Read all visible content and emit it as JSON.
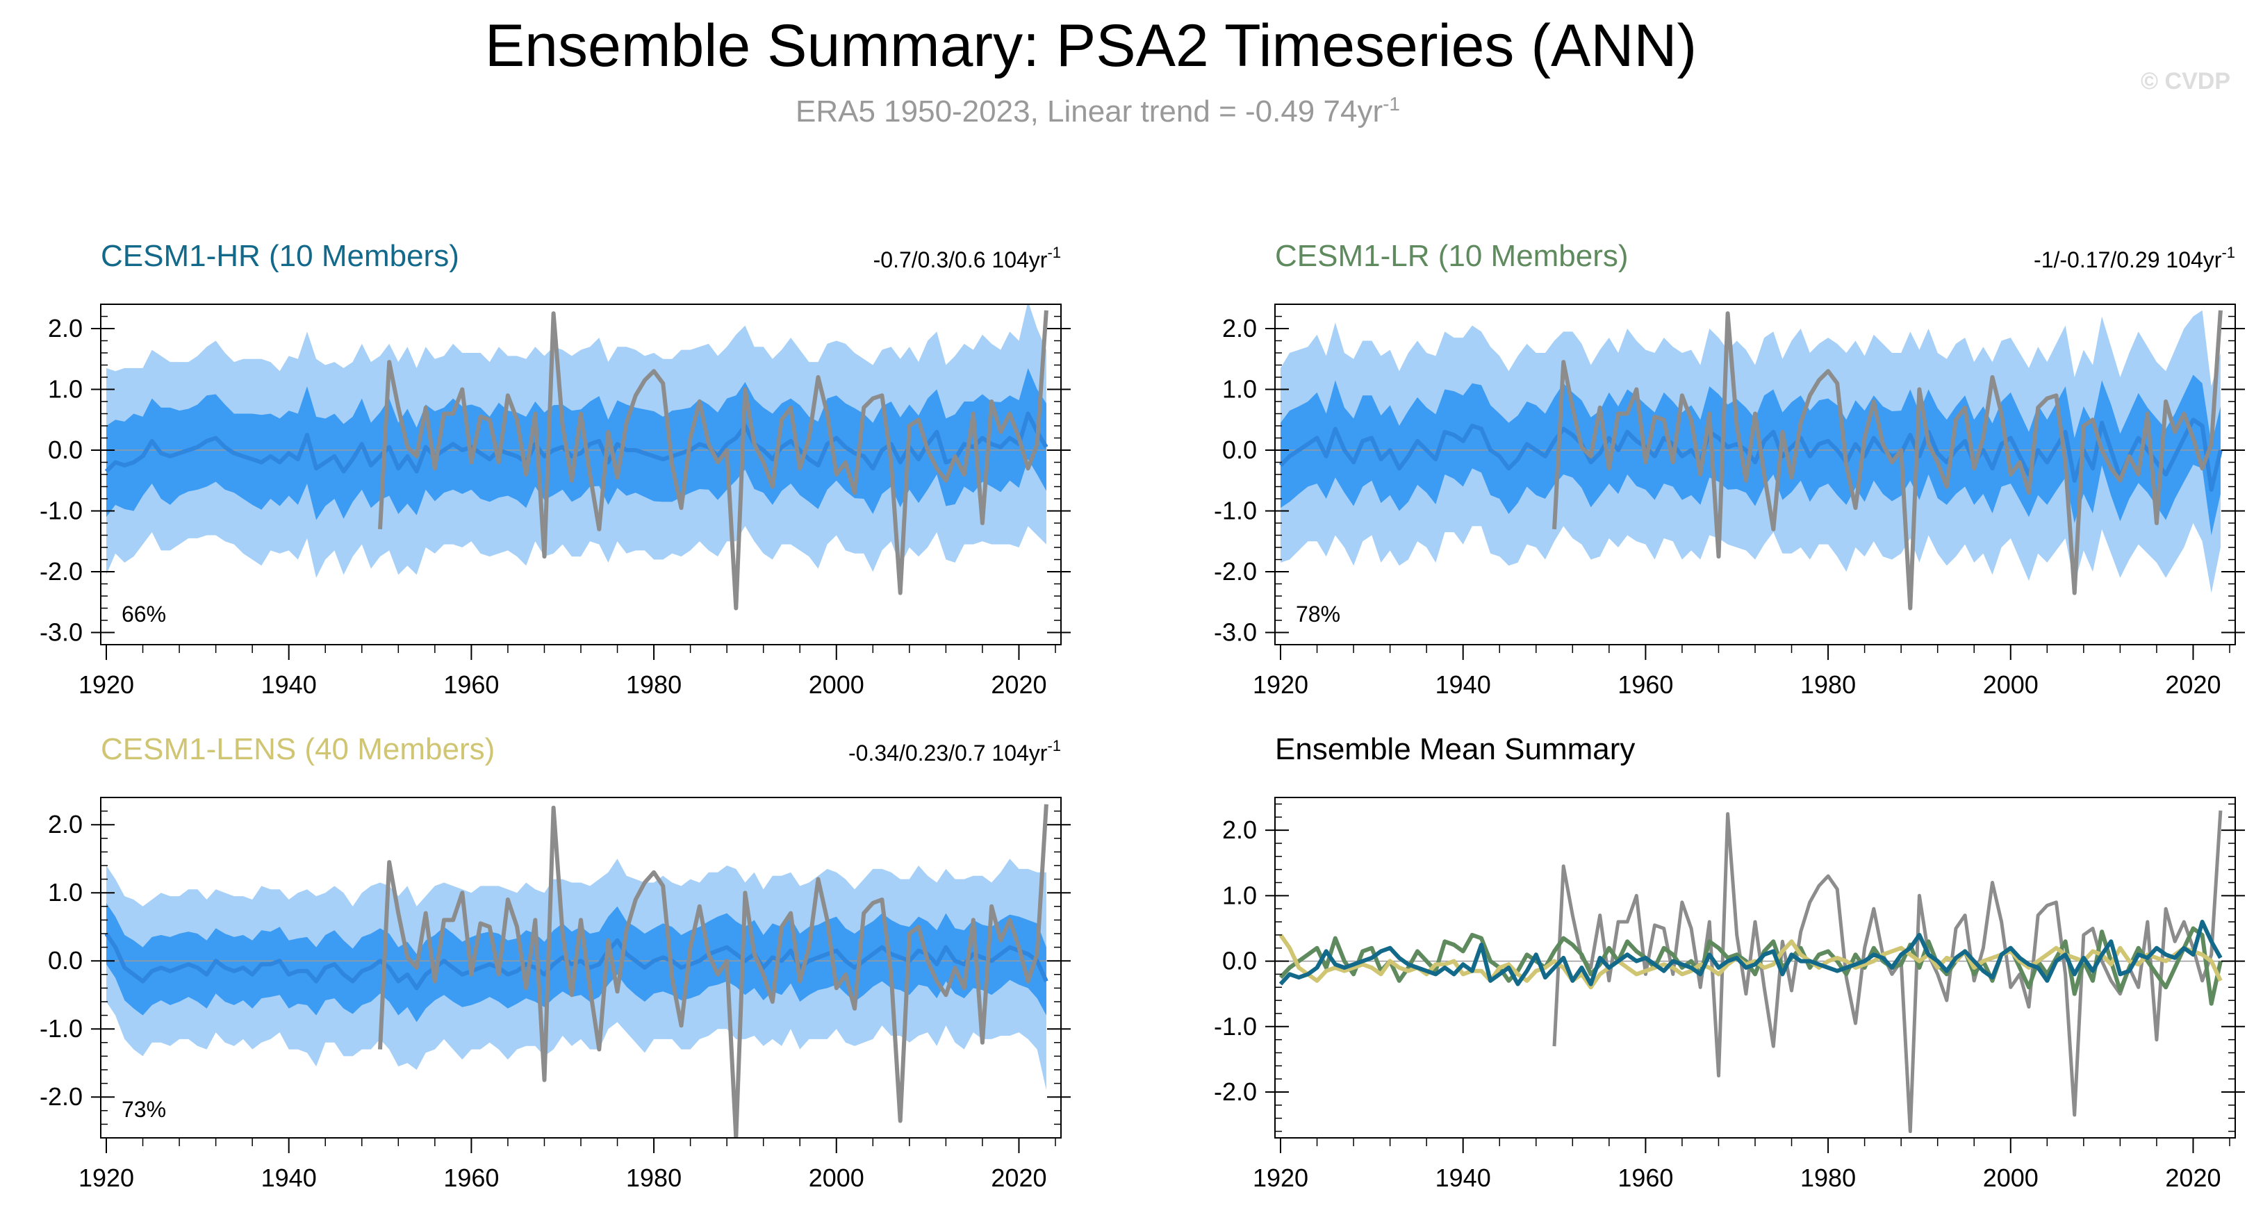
{
  "title": "Ensemble Summary: PSA2 Timeseries (ANN)",
  "subtitle": "ERA5 1950-2023, Linear trend = -0.49 74yr",
  "subtitle_sup": "-1",
  "watermark": "© CVDP",
  "colors": {
    "outer_band": "#a6d0f7",
    "inner_band": "#3c9bf2",
    "ensemble_mean": "#2f86de",
    "obs": "#8c8c8c",
    "hr": "#13698a",
    "lr": "#5e8a5e",
    "lens": "#cfc572",
    "zero_line": "#9a9a9a"
  },
  "chart_data": [
    {
      "id": "hr",
      "type": "area",
      "title": "CESM1-HR (10 Members)",
      "title_color": "#13698a",
      "trend_label": "-0.7/0.3/0.6 104yr",
      "trend_sup": "-1",
      "percent_label": "66%",
      "x_start": 1920,
      "x_end": 2023,
      "xlim": [
        1920,
        2024
      ],
      "ylim": [
        -3.2,
        2.4
      ],
      "xticks": [
        "1920",
        "1940",
        "1960",
        "1980",
        "2000",
        "2020"
      ],
      "yticks": [
        "2.0",
        "1.0",
        "0.0",
        "-1.0",
        "-2.0",
        "-3.0"
      ],
      "ytick_values": [
        2,
        1,
        0,
        -1,
        -2,
        -3
      ],
      "ens_mean": [
        -0.35,
        -0.2,
        -0.25,
        -0.2,
        -0.1,
        0.15,
        -0.05,
        -0.1,
        -0.05,
        0.0,
        0.05,
        0.15,
        0.2,
        0.05,
        -0.05,
        -0.1,
        -0.15,
        -0.2,
        -0.1,
        -0.2,
        -0.05,
        -0.15,
        0.25,
        -0.3,
        -0.2,
        -0.1,
        -0.35,
        -0.15,
        0.1,
        -0.25,
        -0.1,
        0.05,
        -0.3,
        -0.1,
        -0.35,
        0.05,
        -0.1,
        0.0,
        0.1,
        0.0,
        0.05,
        -0.05,
        -0.15,
        0.0,
        -0.05,
        -0.1,
        -0.2,
        0.1,
        -0.1,
        0.0,
        0.05,
        -0.1,
        -0.05,
        0.1,
        0.15,
        -0.2,
        0.1,
        0.0,
        0.0,
        -0.05,
        -0.1,
        -0.15,
        -0.1,
        -0.05,
        0.0,
        0.1,
        0.05,
        -0.1,
        0.1,
        0.2,
        0.4,
        0.1,
        0.0,
        -0.15,
        0.05,
        0.15,
        0.0,
        -0.15,
        -0.25,
        0.1,
        0.2,
        0.05,
        -0.05,
        -0.1,
        -0.3,
        0.0,
        0.1,
        -0.2,
        0.05,
        -0.15,
        0.1,
        0.3,
        -0.2,
        -0.15,
        0.1,
        0.05,
        0.2,
        0.1,
        0.05,
        0.2,
        0.1,
        0.6,
        0.3,
        0.05
      ],
      "ens_spread": [
        0.75,
        0.7,
        0.72,
        0.8,
        0.65,
        0.7,
        0.75,
        0.8,
        0.7,
        0.68,
        0.7,
        0.75,
        0.72,
        0.7,
        0.65,
        0.7,
        0.75,
        0.78,
        0.7,
        0.72,
        0.7,
        0.75,
        0.8,
        0.85,
        0.72,
        0.7,
        0.78,
        0.7,
        0.75,
        0.7,
        0.72,
        0.8,
        0.75,
        0.78,
        0.72,
        0.7,
        0.74,
        0.7,
        0.75,
        0.72,
        0.7,
        0.75,
        0.7,
        0.78,
        0.7,
        0.72,
        0.75,
        0.7,
        0.72,
        0.74,
        0.7,
        0.75,
        0.72,
        0.7,
        0.74,
        0.7,
        0.72,
        0.75,
        0.7,
        0.72,
        0.74,
        0.7,
        0.75,
        0.72,
        0.7,
        0.74,
        0.7,
        0.72,
        0.75,
        0.7,
        0.72,
        0.74,
        0.7,
        0.75,
        0.72,
        0.7,
        0.74,
        0.7,
        0.72,
        0.75,
        0.7,
        0.72,
        0.74,
        0.7,
        0.75,
        0.72,
        0.7,
        0.74,
        0.7,
        0.72,
        0.75,
        0.7,
        0.72,
        0.74,
        0.7,
        0.75,
        0.72,
        0.7,
        0.74,
        0.7,
        0.72,
        0.75,
        0.7,
        0.72
      ],
      "outer_spread": [
        1.7,
        1.5,
        1.6,
        1.55,
        1.45,
        1.5,
        1.6,
        1.55,
        1.5,
        1.45,
        1.5,
        1.55,
        1.6,
        1.55,
        1.5,
        1.6,
        1.65,
        1.7,
        1.55,
        1.5,
        1.6,
        1.65,
        1.7,
        1.8,
        1.6,
        1.55,
        1.7,
        1.6,
        1.65,
        1.7,
        1.65,
        1.7,
        1.75,
        1.8,
        1.7,
        1.65,
        1.6,
        1.55,
        1.65,
        1.6,
        1.55,
        1.65,
        1.6,
        1.7,
        1.6,
        1.65,
        1.7,
        1.6,
        1.65,
        1.7,
        1.6,
        1.65,
        1.7,
        1.6,
        1.7,
        1.65,
        1.6,
        1.7,
        1.65,
        1.6,
        1.7,
        1.65,
        1.6,
        1.7,
        1.65,
        1.6,
        1.7,
        1.65,
        1.6,
        1.7,
        1.65,
        1.6,
        1.7,
        1.65,
        1.6,
        1.7,
        1.65,
        1.6,
        1.7,
        1.65,
        1.6,
        1.7,
        1.65,
        1.6,
        1.7,
        1.65,
        1.6,
        1.7,
        1.65,
        1.6,
        1.7,
        1.65,
        1.6,
        1.7,
        1.65,
        1.6,
        1.7,
        1.65,
        1.6,
        1.75,
        1.7,
        1.85,
        1.7,
        1.6
      ]
    },
    {
      "id": "lr",
      "type": "area",
      "title": "CESM1-LR (10 Members)",
      "title_color": "#5e8a5e",
      "trend_label": "-1/-0.17/0.29 104yr",
      "trend_sup": "-1",
      "percent_label": "78%",
      "x_start": 1920,
      "x_end": 2023,
      "xlim": [
        1920,
        2024
      ],
      "ylim": [
        -3.2,
        2.4
      ],
      "xticks": [
        "1920",
        "1940",
        "1960",
        "1980",
        "2000",
        "2020"
      ],
      "yticks": [
        "2.0",
        "1.0",
        "0.0",
        "-1.0",
        "-2.0",
        "-3.0"
      ],
      "ytick_values": [
        2,
        1,
        0,
        -1,
        -2,
        -3
      ],
      "ens_mean": [
        -0.25,
        -0.1,
        0.0,
        0.1,
        0.2,
        -0.1,
        0.35,
        0.0,
        -0.2,
        0.15,
        0.2,
        -0.15,
        0.0,
        -0.3,
        -0.1,
        0.15,
        0.0,
        -0.15,
        0.3,
        0.25,
        0.15,
        0.4,
        0.35,
        0.0,
        -0.1,
        -0.3,
        -0.15,
        0.1,
        0.0,
        -0.1,
        0.15,
        0.35,
        0.25,
        0.1,
        -0.2,
        -0.05,
        0.2,
        0.0,
        0.3,
        0.15,
        0.05,
        -0.1,
        0.2,
        0.1,
        -0.1,
        0.0,
        -0.2,
        0.3,
        0.2,
        0.05,
        0.1,
        0.0,
        -0.2,
        0.15,
        0.3,
        -0.1,
        0.05,
        0.2,
        -0.1,
        0.1,
        0.15,
        0.0,
        -0.2,
        0.1,
        -0.1,
        0.2,
        0.0,
        -0.1,
        -0.05,
        0.25,
        -0.1,
        0.3,
        -0.05,
        -0.2,
        0.0,
        0.15,
        -0.2,
        0.0,
        -0.3,
        0.1,
        0.2,
        -0.1,
        -0.4,
        0.0,
        -0.2,
        0.05,
        0.3,
        -0.5,
        0.0,
        -0.3,
        0.45,
        0.0,
        -0.45,
        -0.1,
        0.2,
        0.0,
        -0.2,
        -0.4,
        -0.1,
        0.2,
        0.5,
        0.4,
        -0.65,
        0.0
      ],
      "ens_spread": [
        0.7,
        0.75,
        0.72,
        0.7,
        0.75,
        0.7,
        0.8,
        0.7,
        0.72,
        0.75,
        0.7,
        0.72,
        0.74,
        0.7,
        0.75,
        0.72,
        0.7,
        0.74,
        0.7,
        0.72,
        0.75,
        0.7,
        0.72,
        0.74,
        0.7,
        0.75,
        0.72,
        0.7,
        0.74,
        0.7,
        0.72,
        0.75,
        0.7,
        0.72,
        0.74,
        0.7,
        0.75,
        0.72,
        0.7,
        0.74,
        0.7,
        0.72,
        0.75,
        0.7,
        0.72,
        0.74,
        0.7,
        0.75,
        0.72,
        0.7,
        0.74,
        0.7,
        0.72,
        0.75,
        0.7,
        0.72,
        0.74,
        0.7,
        0.75,
        0.72,
        0.7,
        0.74,
        0.7,
        0.72,
        0.75,
        0.7,
        0.72,
        0.74,
        0.7,
        0.75,
        0.72,
        0.7,
        0.74,
        0.7,
        0.72,
        0.75,
        0.7,
        0.72,
        0.74,
        0.7,
        0.75,
        0.72,
        0.7,
        0.74,
        0.7,
        0.72,
        0.75,
        0.7,
        0.72,
        0.74,
        0.7,
        0.75,
        0.72,
        0.7,
        0.74,
        0.7,
        0.72,
        0.75,
        0.7,
        0.72,
        0.74,
        0.7,
        0.75,
        0.72
      ],
      "outer_spread": [
        1.6,
        1.7,
        1.65,
        1.6,
        1.7,
        1.65,
        1.75,
        1.6,
        1.7,
        1.65,
        1.6,
        1.7,
        1.65,
        1.6,
        1.7,
        1.65,
        1.6,
        1.7,
        1.65,
        1.6,
        1.7,
        1.65,
        1.6,
        1.7,
        1.65,
        1.6,
        1.7,
        1.65,
        1.6,
        1.7,
        1.65,
        1.6,
        1.7,
        1.65,
        1.6,
        1.7,
        1.65,
        1.6,
        1.7,
        1.65,
        1.6,
        1.7,
        1.65,
        1.6,
        1.7,
        1.65,
        1.6,
        1.7,
        1.65,
        1.6,
        1.7,
        1.65,
        1.6,
        1.7,
        1.65,
        1.6,
        1.75,
        1.8,
        1.7,
        1.65,
        1.7,
        1.75,
        1.8,
        1.7,
        1.65,
        1.7,
        1.75,
        1.7,
        1.65,
        1.7,
        1.75,
        1.7,
        1.65,
        1.7,
        1.75,
        1.7,
        1.65,
        1.7,
        1.75,
        1.7,
        1.65,
        1.7,
        1.75,
        1.7,
        1.65,
        1.7,
        1.75,
        1.7,
        1.65,
        1.7,
        1.75,
        1.7,
        1.65,
        1.7,
        1.75,
        1.7,
        1.65,
        1.7,
        1.75,
        1.8,
        1.7,
        1.9,
        1.7,
        1.6
      ]
    },
    {
      "id": "lens",
      "type": "area",
      "title": "CESM1-LENS (40 Members)",
      "title_color": "#cfc572",
      "trend_label": "-0.34/0.23/0.7 104yr",
      "trend_sup": "-1",
      "percent_label": "73%",
      "x_start": 1920,
      "x_end": 2023,
      "xlim": [
        1920,
        2024
      ],
      "ylim": [
        -2.6,
        2.4
      ],
      "xticks": [
        "1920",
        "1940",
        "1960",
        "1980",
        "2000",
        "2020"
      ],
      "yticks": [
        "2.0",
        "1.0",
        "0.0",
        "-1.0",
        "-2.0"
      ],
      "ytick_values": [
        2,
        1,
        0,
        -1,
        -2
      ],
      "ens_mean": [
        0.4,
        0.2,
        -0.1,
        -0.2,
        -0.3,
        -0.15,
        -0.1,
        -0.15,
        -0.1,
        -0.05,
        -0.1,
        -0.2,
        0.0,
        -0.1,
        -0.15,
        -0.1,
        -0.2,
        -0.05,
        -0.05,
        0.0,
        -0.2,
        -0.15,
        -0.15,
        -0.3,
        -0.1,
        -0.05,
        -0.2,
        -0.3,
        -0.15,
        -0.1,
        0.0,
        -0.1,
        -0.3,
        -0.2,
        -0.4,
        -0.2,
        -0.1,
        0.0,
        -0.1,
        -0.2,
        -0.15,
        -0.1,
        -0.05,
        -0.1,
        -0.2,
        -0.15,
        -0.05,
        -0.1,
        -0.2,
        -0.05,
        0.05,
        -0.05,
        0.0,
        -0.1,
        -0.05,
        0.15,
        0.3,
        0.1,
        0.0,
        -0.1,
        0.0,
        0.05,
        0.0,
        -0.1,
        -0.05,
        0.0,
        0.1,
        0.15,
        0.2,
        0.1,
        0.0,
        0.1,
        -0.1,
        0.05,
        0.0,
        0.15,
        -0.1,
        0.0,
        0.05,
        0.1,
        0.15,
        0.0,
        -0.1,
        0.0,
        0.1,
        0.2,
        0.1,
        0.05,
        0.0,
        0.15,
        0.1,
        -0.05,
        0.2,
        0.0,
        -0.05,
        0.1,
        0.05,
        0.0,
        0.1,
        0.2,
        0.15,
        0.1,
        0.0,
        -0.3
      ],
      "ens_spread": [
        0.45,
        0.45,
        0.48,
        0.5,
        0.5,
        0.5,
        0.48,
        0.5,
        0.5,
        0.48,
        0.5,
        0.5,
        0.48,
        0.5,
        0.5,
        0.48,
        0.5,
        0.5,
        0.48,
        0.5,
        0.5,
        0.48,
        0.5,
        0.5,
        0.48,
        0.5,
        0.5,
        0.48,
        0.5,
        0.5,
        0.48,
        0.5,
        0.5,
        0.48,
        0.5,
        0.5,
        0.48,
        0.5,
        0.5,
        0.48,
        0.5,
        0.5,
        0.48,
        0.5,
        0.5,
        0.48,
        0.5,
        0.5,
        0.48,
        0.5,
        0.5,
        0.48,
        0.5,
        0.5,
        0.48,
        0.5,
        0.5,
        0.48,
        0.5,
        0.5,
        0.48,
        0.5,
        0.5,
        0.48,
        0.5,
        0.5,
        0.48,
        0.5,
        0.5,
        0.48,
        0.5,
        0.5,
        0.48,
        0.5,
        0.5,
        0.48,
        0.5,
        0.5,
        0.48,
        0.5,
        0.5,
        0.48,
        0.5,
        0.5,
        0.48,
        0.5,
        0.5,
        0.48,
        0.5,
        0.5,
        0.48,
        0.5,
        0.5,
        0.48,
        0.5,
        0.5,
        0.48,
        0.5,
        0.5,
        0.48,
        0.5,
        0.5,
        0.55,
        0.5
      ],
      "outer_spread": [
        1.0,
        1.0,
        1.05,
        1.1,
        1.1,
        1.05,
        1.1,
        1.1,
        1.05,
        1.1,
        1.15,
        1.1,
        1.05,
        1.1,
        1.1,
        1.05,
        1.1,
        1.15,
        1.1,
        1.05,
        1.1,
        1.15,
        1.2,
        1.25,
        1.1,
        1.15,
        1.2,
        1.1,
        1.15,
        1.2,
        1.15,
        1.2,
        1.25,
        1.3,
        1.2,
        1.15,
        1.2,
        1.15,
        1.2,
        1.25,
        1.15,
        1.2,
        1.15,
        1.2,
        1.25,
        1.15,
        1.2,
        1.15,
        1.2,
        1.25,
        1.15,
        1.2,
        1.15,
        1.2,
        1.25,
        1.15,
        1.2,
        1.15,
        1.2,
        1.25,
        1.15,
        1.2,
        1.15,
        1.2,
        1.25,
        1.15,
        1.2,
        1.15,
        1.2,
        1.25,
        1.15,
        1.2,
        1.15,
        1.2,
        1.25,
        1.15,
        1.2,
        1.15,
        1.2,
        1.25,
        1.15,
        1.2,
        1.15,
        1.2,
        1.25,
        1.15,
        1.2,
        1.15,
        1.2,
        1.25,
        1.15,
        1.2,
        1.15,
        1.2,
        1.25,
        1.15,
        1.2,
        1.15,
        1.2,
        1.3,
        1.2,
        1.25,
        1.3,
        1.6
      ]
    },
    {
      "id": "mean",
      "type": "line",
      "title": "Ensemble Mean Summary",
      "title_color": "#000000",
      "x_start": 1920,
      "x_end": 2023,
      "xlim": [
        1920,
        2024
      ],
      "ylim": [
        -2.7,
        2.5
      ],
      "xticks": [
        "1920",
        "1940",
        "1960",
        "1980",
        "2000",
        "2020"
      ],
      "yticks": [
        "2.0",
        "1.0",
        "0.0",
        "-1.0",
        "-2.0"
      ],
      "ytick_values": [
        2,
        1,
        0,
        -1,
        -2
      ]
    }
  ],
  "obs_series": {
    "name": "ERA5",
    "x_start": 1950,
    "values": [
      -1.3,
      1.45,
      0.7,
      0.05,
      -0.1,
      0.7,
      -0.3,
      0.6,
      0.6,
      1.0,
      -0.2,
      0.55,
      0.5,
      -0.2,
      0.9,
      0.5,
      -0.4,
      0.6,
      -1.75,
      2.25,
      0.4,
      -0.5,
      0.6,
      -0.4,
      -1.3,
      0.3,
      -0.45,
      0.45,
      0.9,
      1.15,
      1.3,
      1.1,
      -0.25,
      -0.95,
      0.2,
      0.8,
      0.1,
      -0.2,
      0.0,
      -2.6,
      1.0,
      0.1,
      -0.2,
      -0.6,
      0.5,
      0.7,
      -0.3,
      0.2,
      1.2,
      0.6,
      -0.4,
      -0.2,
      -0.7,
      0.7,
      0.85,
      0.9,
      -0.2,
      -2.35,
      0.4,
      0.5,
      0.0,
      -0.3,
      -0.5,
      -0.1,
      -0.4,
      0.6,
      -1.2,
      0.8,
      0.3,
      0.6,
      0.2,
      -0.3,
      0.1,
      2.3
    ]
  }
}
